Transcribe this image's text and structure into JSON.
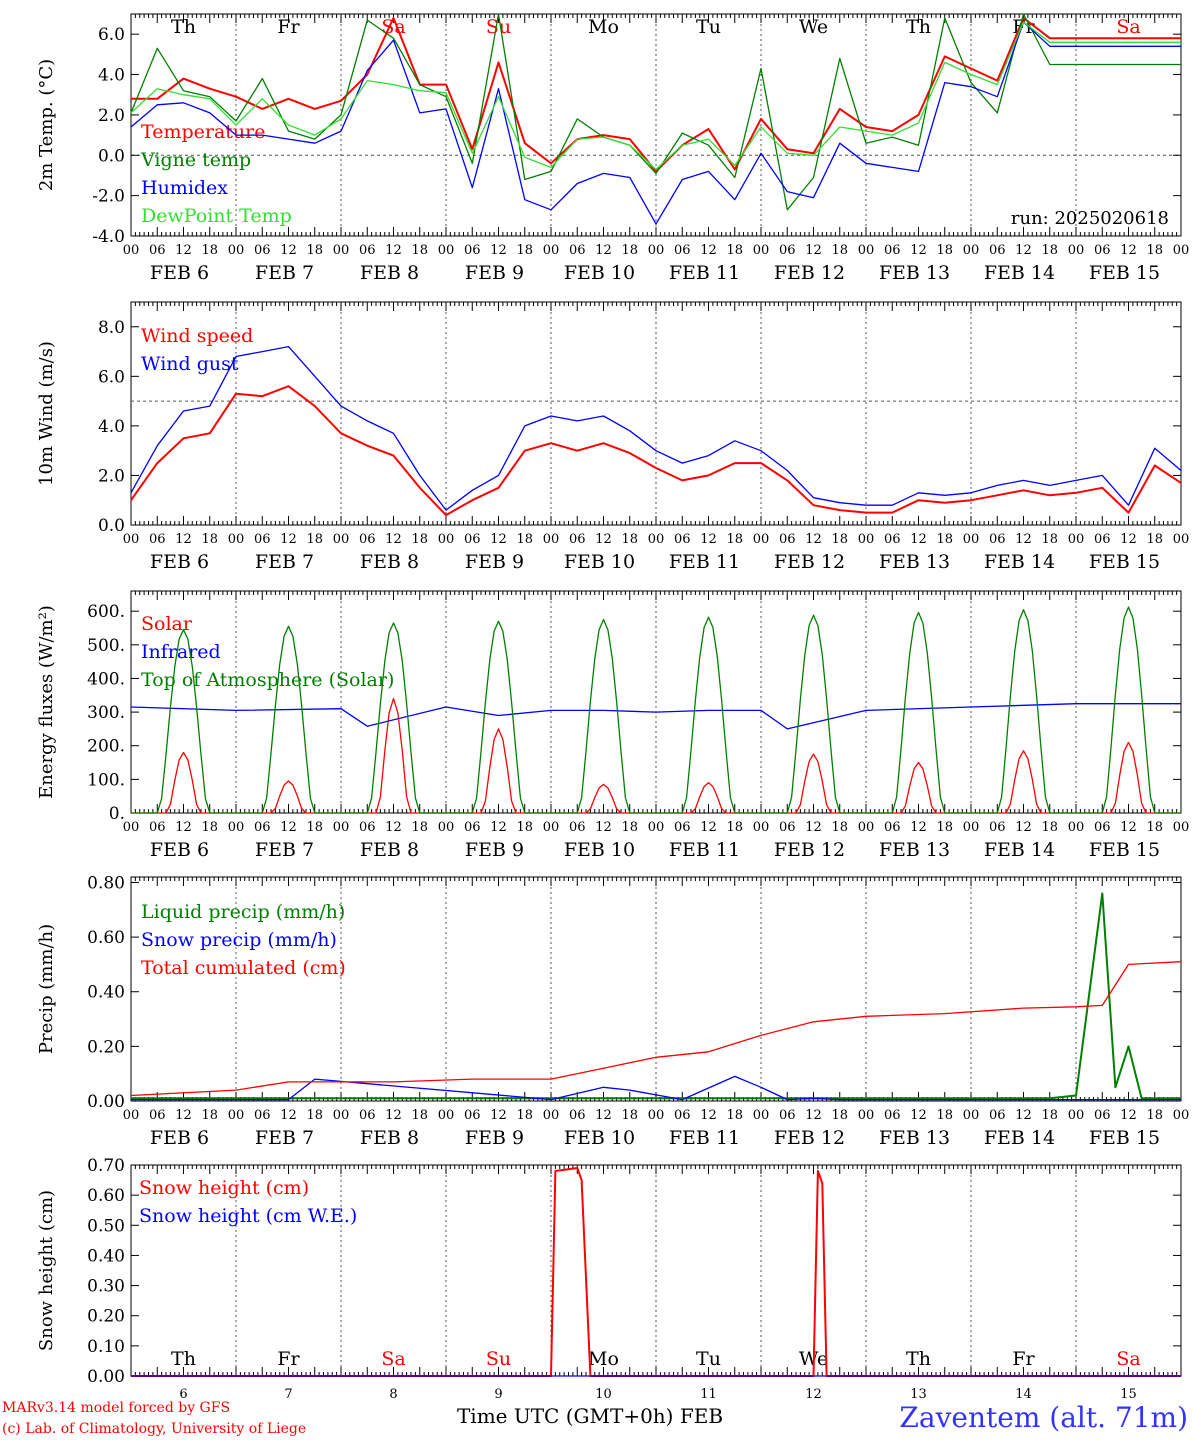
{
  "footer": {
    "model": "MARv3.14 model forced by GFS",
    "copyright": "(c) Lab. of Climatology, University of Liege",
    "time_axis": "Time UTC (GMT+0h) FEB",
    "station": "Zaventem (alt. 71m)"
  },
  "colors": {
    "red": "#ff0000",
    "green": "#008000",
    "blue": "#0000ff",
    "light_green": "#33dd33",
    "black": "#000000"
  },
  "day_labels": [
    "Th",
    "Fr",
    "Sa",
    "Su",
    "Mo",
    "Tu",
    "We",
    "Th",
    "Fr",
    "Sa"
  ],
  "weekend_flags": [
    false,
    false,
    true,
    true,
    false,
    false,
    false,
    false,
    false,
    true
  ],
  "date_labels": [
    "FEB  6",
    "FEB  7",
    "FEB  8",
    "FEB  9",
    "FEB 10",
    "FEB 11",
    "FEB 12",
    "FEB 13",
    "FEB 14",
    "FEB 15"
  ],
  "bottom_day_numbers": [
    "6",
    "7",
    "8",
    "9",
    "10",
    "11",
    "12",
    "13",
    "14",
    "15"
  ],
  "hour_ticks": [
    "00",
    "06",
    "12",
    "18"
  ],
  "hour_tick_end": "00",
  "chart_data": [
    {
      "type": "line",
      "ylabel": "2m Temp. (°C)",
      "ylim": [
        -4,
        7
      ],
      "yticks": [
        "-4.0",
        "-2.0",
        "0.0",
        "2.0",
        "4.0",
        "6.0"
      ],
      "ytick_values": [
        -4,
        -2,
        0,
        2,
        4,
        6
      ],
      "ref_line": 0,
      "annotation": "run: 2025020618",
      "x_hours": [
        0,
        6,
        12,
        18,
        24,
        30,
        36,
        42,
        48,
        54,
        60,
        66,
        72,
        78,
        84,
        90,
        96,
        102,
        108,
        114,
        120,
        126,
        132,
        138,
        144,
        150,
        156,
        162,
        168,
        174,
        180,
        186,
        192,
        198,
        204,
        210,
        216,
        222,
        228,
        234,
        240
      ],
      "series": [
        {
          "name": "Temperature",
          "color": "#ff0000",
          "values": [
            2.8,
            2.8,
            3.8,
            3.3,
            2.9,
            2.3,
            2.8,
            2.3,
            2.7,
            4.0,
            6.8,
            3.5,
            3.5,
            0.3,
            4.6,
            0.6,
            -0.4,
            0.8,
            1.0,
            0.8,
            -0.8,
            0.5,
            1.3,
            -0.7,
            1.8,
            0.3,
            0.1,
            2.3,
            1.4,
            1.2,
            2.0,
            4.9,
            4.3,
            3.7,
            6.8,
            5.8,
            5.8,
            5.8,
            5.8,
            5.8,
            5.8
          ]
        },
        {
          "name": "Vigne temp",
          "color": "#008000",
          "values": [
            2.1,
            5.3,
            3.2,
            2.9,
            1.7,
            3.8,
            1.2,
            0.8,
            2.0,
            6.7,
            5.8,
            3.5,
            2.9,
            -0.4,
            7.0,
            -1.2,
            -0.8,
            1.8,
            0.9,
            0.5,
            -0.9,
            1.1,
            0.5,
            -1.1,
            4.3,
            -2.7,
            -1.1,
            4.8,
            0.6,
            0.9,
            0.5,
            6.8,
            3.6,
            2.1,
            7.0,
            4.5,
            4.5,
            4.5,
            4.5,
            4.5,
            4.5
          ]
        },
        {
          "name": "Humidex",
          "color": "#0000ff",
          "values": [
            1.4,
            2.5,
            2.6,
            2.1,
            1.0,
            1.0,
            0.8,
            0.6,
            1.2,
            4.2,
            5.7,
            2.1,
            2.3,
            -1.6,
            3.3,
            -2.2,
            -2.7,
            -1.4,
            -0.9,
            -1.1,
            -3.4,
            -1.2,
            -0.8,
            -2.2,
            0.1,
            -1.8,
            -2.1,
            0.6,
            -0.4,
            -0.6,
            -0.8,
            3.6,
            3.4,
            2.9,
            6.6,
            5.4,
            5.4,
            5.4,
            5.4,
            5.4,
            5.4
          ]
        },
        {
          "name": "DewPoint Temp",
          "color": "#33dd33",
          "values": [
            2.1,
            3.3,
            3.0,
            2.8,
            1.5,
            2.8,
            1.5,
            1.0,
            1.8,
            3.7,
            3.5,
            3.2,
            3.1,
            0.1,
            2.9,
            -0.1,
            -0.6,
            0.8,
            0.9,
            0.5,
            -0.7,
            0.5,
            0.8,
            -0.5,
            1.4,
            0.1,
            0.0,
            1.4,
            1.2,
            1.0,
            1.6,
            4.6,
            4.0,
            3.5,
            6.6,
            5.6,
            5.6,
            5.6,
            5.6,
            5.6,
            5.6
          ]
        }
      ]
    },
    {
      "type": "line",
      "ylabel": "10m Wind (m/s)",
      "ylim": [
        0,
        9
      ],
      "yticks": [
        "0.0",
        "2.0",
        "4.0",
        "6.0",
        "8.0"
      ],
      "ytick_values": [
        0,
        2,
        4,
        6,
        8
      ],
      "ref_line": 5,
      "x_hours": [
        0,
        6,
        12,
        18,
        24,
        30,
        36,
        42,
        48,
        54,
        60,
        66,
        72,
        78,
        84,
        90,
        96,
        102,
        108,
        114,
        120,
        126,
        132,
        138,
        144,
        150,
        156,
        162,
        168,
        174,
        180,
        186,
        192,
        198,
        204,
        210,
        216,
        222,
        228,
        234,
        240
      ],
      "series": [
        {
          "name": "Wind speed",
          "color": "#ff0000",
          "values": [
            1.0,
            2.5,
            3.5,
            3.7,
            5.3,
            5.2,
            5.6,
            4.8,
            3.7,
            3.2,
            2.8,
            1.5,
            0.4,
            1.0,
            1.5,
            3.0,
            3.3,
            3.0,
            3.3,
            2.9,
            2.3,
            1.8,
            2.0,
            2.5,
            2.5,
            1.8,
            0.8,
            0.6,
            0.5,
            0.5,
            1.0,
            0.9,
            1.0,
            1.2,
            1.4,
            1.2,
            1.3,
            1.5,
            0.5,
            2.4,
            1.7
          ]
        },
        {
          "name": "Wind gust",
          "color": "#0000ff",
          "values": [
            1.3,
            3.2,
            4.6,
            4.8,
            6.8,
            7.0,
            7.2,
            6.0,
            4.8,
            4.2,
            3.7,
            2.0,
            0.6,
            1.4,
            2.0,
            4.0,
            4.4,
            4.2,
            4.4,
            3.8,
            3.0,
            2.5,
            2.8,
            3.4,
            3.0,
            2.2,
            1.1,
            0.9,
            0.8,
            0.8,
            1.3,
            1.2,
            1.3,
            1.6,
            1.8,
            1.6,
            1.8,
            2.0,
            0.8,
            3.1,
            2.2
          ]
        }
      ]
    },
    {
      "type": "line",
      "ylabel": "Energy fluxes (W/m²)",
      "ylim": [
        0,
        660
      ],
      "yticks": [
        "0.",
        "100.",
        "200.",
        "300.",
        "400.",
        "500.",
        "600."
      ],
      "ytick_values": [
        0,
        100,
        200,
        300,
        400,
        500,
        600
      ],
      "series": [
        {
          "name": "Solar",
          "color": "#ff0000",
          "daily_peaks": [
            180,
            95,
            340,
            250,
            85,
            90,
            175,
            150,
            185,
            210
          ]
        },
        {
          "name": "Infrared",
          "color": "#0000ff",
          "x_hours": [
            0,
            24,
            48,
            54,
            72,
            84,
            96,
            108,
            120,
            132,
            144,
            150,
            168,
            192,
            216,
            240
          ],
          "values": [
            315,
            305,
            310,
            258,
            315,
            290,
            305,
            305,
            300,
            305,
            305,
            250,
            305,
            315,
            325,
            325
          ]
        },
        {
          "name": "Top of Atmosphere (Solar)",
          "color": "#008000",
          "daily_peaks": [
            545,
            555,
            565,
            570,
            575,
            582,
            588,
            596,
            604,
            612
          ]
        }
      ]
    },
    {
      "type": "line",
      "ylabel": "Precip (mm/h)",
      "ylim": [
        0,
        0.82
      ],
      "yticks": [
        "0.00",
        "0.20",
        "0.40",
        "0.60",
        "0.80"
      ],
      "ytick_values": [
        0,
        0.2,
        0.4,
        0.6,
        0.8
      ],
      "series": [
        {
          "name": "Liquid precip (mm/h)",
          "color": "#008000",
          "x_hours": [
            0,
            210,
            216,
            222,
            225,
            228,
            231,
            234,
            240
          ],
          "values": [
            0.01,
            0.01,
            0.02,
            0.76,
            0.05,
            0.2,
            0.01,
            0.01,
            0.01
          ]
        },
        {
          "name": "Snow precip (mm/h)",
          "color": "#0000ff",
          "x_hours": [
            0,
            36,
            42,
            96,
            108,
            114,
            126,
            138,
            144,
            150,
            156,
            162,
            240
          ],
          "values": [
            0.005,
            0.005,
            0.08,
            0.005,
            0.05,
            0.04,
            0.005,
            0.09,
            0.05,
            0.005,
            0.01,
            0.005,
            0.005
          ]
        },
        {
          "name": "Total cumulated (cm)",
          "color": "#ff0000",
          "x_hours": [
            0,
            24,
            36,
            60,
            78,
            96,
            108,
            120,
            132,
            144,
            156,
            168,
            186,
            204,
            216,
            222,
            228,
            240
          ],
          "values": [
            0.02,
            0.04,
            0.07,
            0.07,
            0.08,
            0.08,
            0.12,
            0.16,
            0.18,
            0.24,
            0.29,
            0.31,
            0.32,
            0.34,
            0.345,
            0.35,
            0.5,
            0.51
          ]
        }
      ]
    },
    {
      "type": "line",
      "ylabel": "Snow height (cm)",
      "ylim": [
        0,
        0.7
      ],
      "yticks": [
        "0.00",
        "0.10",
        "0.20",
        "0.30",
        "0.40",
        "0.50",
        "0.60",
        "0.70"
      ],
      "ytick_values": [
        0,
        0.1,
        0.2,
        0.3,
        0.4,
        0.5,
        0.6,
        0.7
      ],
      "series": [
        {
          "name": "Snow height (cm)",
          "color": "#ff0000",
          "x_hours": [
            0,
            96,
            97,
            102,
            103,
            105,
            156,
            157,
            158,
            159,
            240
          ],
          "values": [
            0,
            0,
            0.68,
            0.69,
            0.65,
            0,
            0,
            0.68,
            0.64,
            0,
            0
          ]
        },
        {
          "name": "Snow height (cm W.E.)",
          "color": "#0000ff",
          "x_hours": [
            0,
            240
          ],
          "values": [
            0,
            0
          ]
        }
      ]
    }
  ]
}
